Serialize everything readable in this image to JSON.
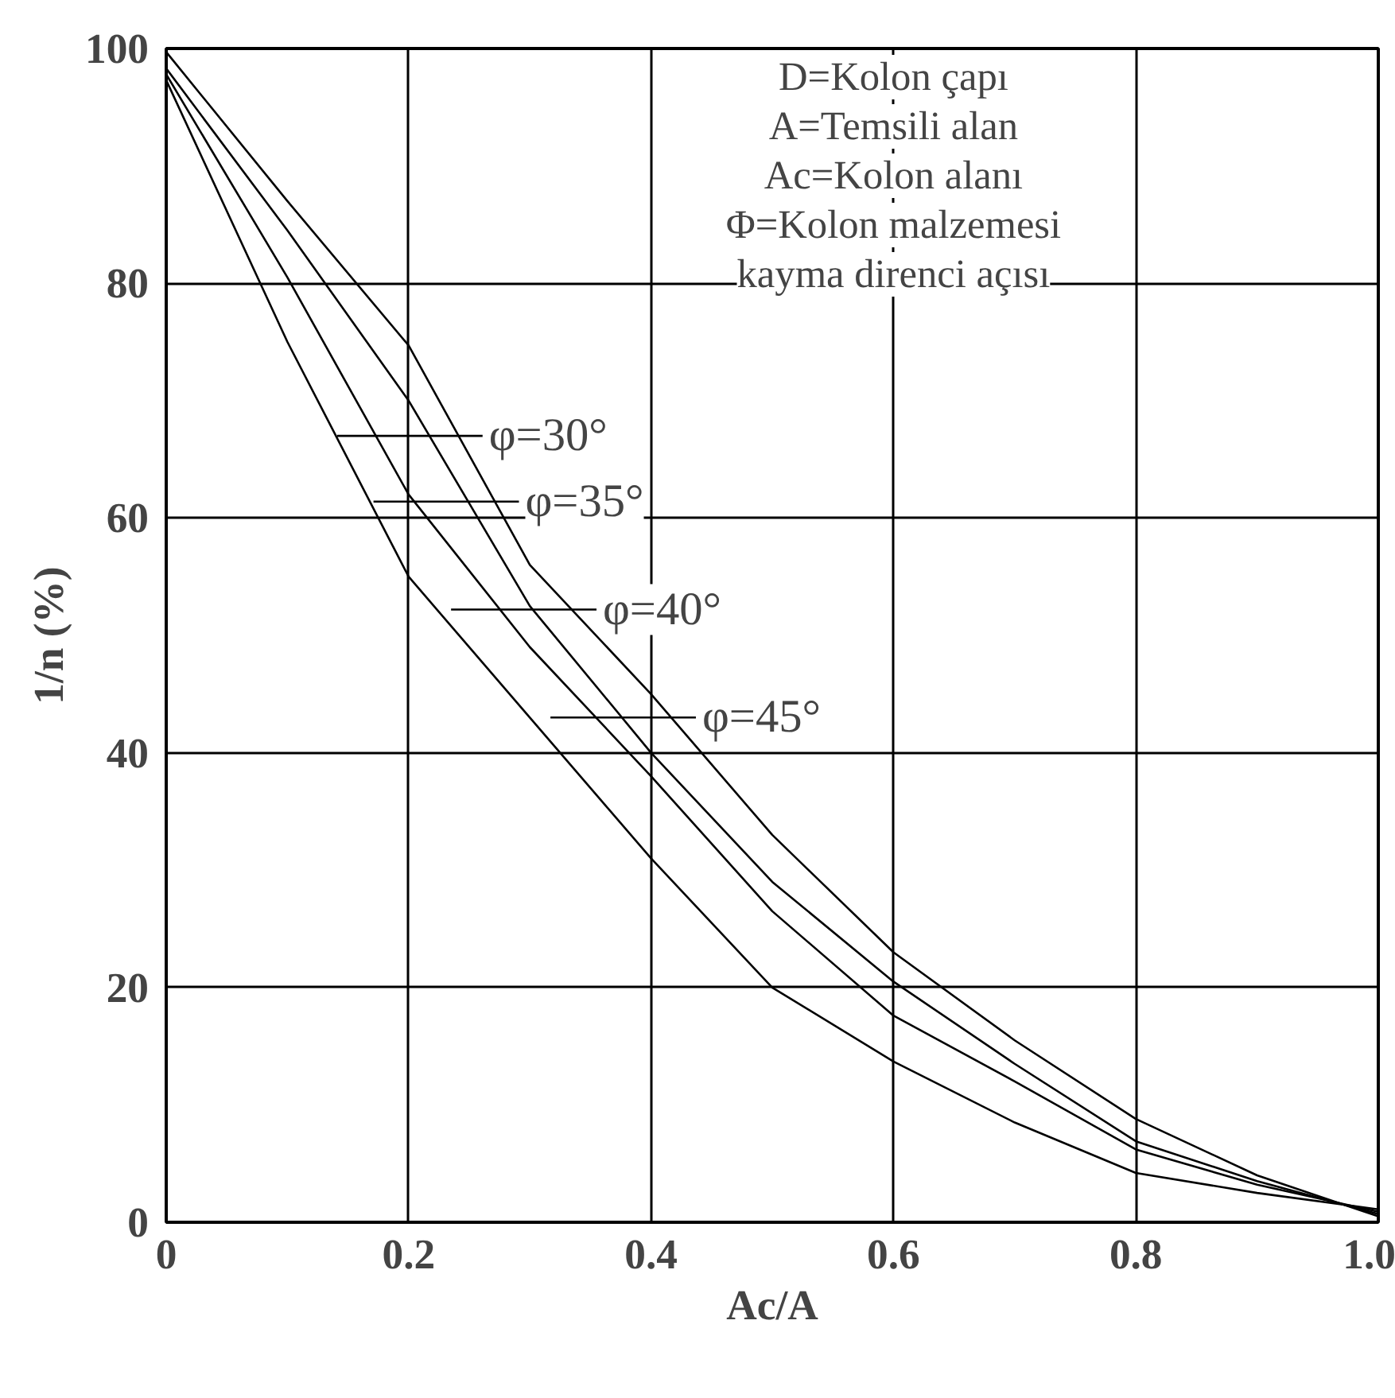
{
  "chart_data": {
    "type": "line",
    "xlabel": "Ac/A",
    "ylabel": "1/n (%)",
    "xlim": [
      0,
      1
    ],
    "ylim": [
      0,
      100
    ],
    "xticks": [
      0,
      0.2,
      0.4,
      0.6,
      0.8,
      {
        "value": 1,
        "label": "1.0"
      }
    ],
    "yticks": [
      0,
      20,
      40,
      60,
      80,
      100
    ],
    "grid": true,
    "marker": "none",
    "line_style": "solid",
    "x": [
      0,
      0.1,
      0.2,
      0.3,
      0.4,
      0.5,
      0.6,
      0.7,
      0.8,
      0.9,
      1.0
    ],
    "series": [
      {
        "color": "#000000",
        "values": [
          99.7,
          87,
          74.7,
          56,
          45,
          33,
          23,
          15.5,
          8.8,
          4,
          0.5
        ]
      },
      {
        "color": "#000000",
        "values": [
          98.3,
          84.5,
          70,
          52.5,
          40,
          29,
          20.5,
          13.5,
          6.9,
          3.5,
          0.7
        ]
      },
      {
        "color": "#000000",
        "values": [
          97.8,
          80.5,
          62,
          49,
          38,
          26.5,
          17.6,
          12,
          6.2,
          3.2,
          0.9
        ]
      },
      {
        "color": "#000000",
        "values": [
          97.3,
          75,
          55,
          43,
          31,
          20,
          13.7,
          8.5,
          4.2,
          2.5,
          1.1
        ]
      }
    ],
    "annotations": [
      {
        "text": "φ=30°",
        "x": 0.241,
        "y": 67
      },
      {
        "text": "φ=35°",
        "x": 0.271,
        "y": 61.4
      },
      {
        "text": "φ=40°",
        "x": 0.335,
        "y": 52.2
      },
      {
        "text": "φ=45°",
        "x": 0.417,
        "y": 43
      },
      "D=Kolon çapı",
      "A=Temsili alan",
      "Ac=Kolon alanı",
      "Φ=Kolon malzemesi",
      "kayma direnci açısı"
    ]
  }
}
